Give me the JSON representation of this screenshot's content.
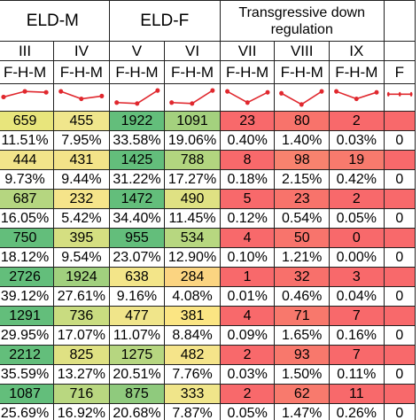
{
  "groups": [
    {
      "label": "ELD-M",
      "span": 2
    },
    {
      "label": "ELD-F",
      "span": 2
    },
    {
      "label": "Transgressive down regulation",
      "span": 3
    },
    {
      "label": "",
      "span": 1
    }
  ],
  "columns": [
    "III",
    "IV",
    "V",
    "VI",
    "VII",
    "VIII",
    "IX",
    ""
  ],
  "subheaders": [
    "F-H-M",
    "F-H-M",
    "F-H-M",
    "F-H-M",
    "F-H-M",
    "F-H-M",
    "F-H-M",
    "F"
  ],
  "trend_color": "#e0282e",
  "trends": [
    [
      0.45,
      0.15,
      0.2
    ],
    [
      0.15,
      0.55,
      0.4
    ],
    [
      0.75,
      0.8,
      0.1
    ],
    [
      0.75,
      0.8,
      0.1
    ],
    [
      0.15,
      0.75,
      0.2
    ],
    [
      0.25,
      0.85,
      0.15
    ],
    [
      0.15,
      0.55,
      0.2
    ],
    [
      0.3,
      0.3,
      0.3
    ]
  ],
  "rows": [
    {
      "type": "count",
      "cells": [
        {
          "text": "659",
          "color": "#e8e57c"
        },
        {
          "text": "455",
          "color": "#f0e68c"
        },
        {
          "text": "1922",
          "color": "#63be7b"
        },
        {
          "text": "1091",
          "color": "#a4d17e"
        },
        {
          "text": "23",
          "color": "#f8696b"
        },
        {
          "text": "80",
          "color": "#f8736b"
        },
        {
          "text": "2",
          "color": "#f8696b"
        },
        {
          "text": "",
          "color": "#f8696b"
        }
      ]
    },
    {
      "type": "pct",
      "cells": [
        {
          "text": "11.51%"
        },
        {
          "text": "7.95%"
        },
        {
          "text": "33.58%"
        },
        {
          "text": "19.06%"
        },
        {
          "text": "0.40%"
        },
        {
          "text": "1.40%"
        },
        {
          "text": "0.03%"
        },
        {
          "text": "0"
        }
      ]
    },
    {
      "type": "count",
      "cells": [
        {
          "text": "444",
          "color": "#f2e48a"
        },
        {
          "text": "431",
          "color": "#f3e389"
        },
        {
          "text": "1425",
          "color": "#63be7b"
        },
        {
          "text": "788",
          "color": "#b2d57f"
        },
        {
          "text": "8",
          "color": "#f8696b"
        },
        {
          "text": "98",
          "color": "#f8826e"
        },
        {
          "text": "19",
          "color": "#f87a6d"
        },
        {
          "text": "",
          "color": "#f8696b"
        }
      ]
    },
    {
      "type": "pct",
      "cells": [
        {
          "text": "9.73%"
        },
        {
          "text": "9.44%"
        },
        {
          "text": "31.22%"
        },
        {
          "text": "17.27%"
        },
        {
          "text": "0.18%"
        },
        {
          "text": "2.15%"
        },
        {
          "text": "0.42%"
        },
        {
          "text": "0"
        }
      ]
    },
    {
      "type": "count",
      "cells": [
        {
          "text": "687",
          "color": "#b5d680"
        },
        {
          "text": "232",
          "color": "#f5e48a"
        },
        {
          "text": "1472",
          "color": "#63be7b"
        },
        {
          "text": "490",
          "color": "#dfe183"
        },
        {
          "text": "5",
          "color": "#f8696b"
        },
        {
          "text": "23",
          "color": "#f8736b"
        },
        {
          "text": "2",
          "color": "#f8696b"
        },
        {
          "text": "",
          "color": "#f8696b"
        }
      ]
    },
    {
      "type": "pct",
      "cells": [
        {
          "text": "16.05%"
        },
        {
          "text": "5.42%"
        },
        {
          "text": "34.40%"
        },
        {
          "text": "11.45%"
        },
        {
          "text": "0.12%"
        },
        {
          "text": "0.54%"
        },
        {
          "text": "0.05%"
        },
        {
          "text": "0"
        }
      ]
    },
    {
      "type": "count",
      "cells": [
        {
          "text": "750",
          "color": "#63be7b"
        },
        {
          "text": "395",
          "color": "#d5df81"
        },
        {
          "text": "955",
          "color": "#63be7b"
        },
        {
          "text": "534",
          "color": "#b7d780"
        },
        {
          "text": "4",
          "color": "#f8696b"
        },
        {
          "text": "50",
          "color": "#f8746c"
        },
        {
          "text": "0",
          "color": "#f8696b"
        },
        {
          "text": "",
          "color": "#f8696b"
        }
      ]
    },
    {
      "type": "pct",
      "cells": [
        {
          "text": "18.12%"
        },
        {
          "text": "9.54%"
        },
        {
          "text": "23.07%"
        },
        {
          "text": "12.90%"
        },
        {
          "text": "0.10%"
        },
        {
          "text": "1.21%"
        },
        {
          "text": "0.00%"
        },
        {
          "text": "0"
        }
      ]
    },
    {
      "type": "count",
      "cells": [
        {
          "text": "2726",
          "color": "#63be7b"
        },
        {
          "text": "1924",
          "color": "#a1d07e"
        },
        {
          "text": "638",
          "color": "#f3e589"
        },
        {
          "text": "284",
          "color": "#fbd481"
        },
        {
          "text": "1",
          "color": "#f8696b"
        },
        {
          "text": "32",
          "color": "#f8706b"
        },
        {
          "text": "3",
          "color": "#f8696b"
        },
        {
          "text": "",
          "color": "#f8696b"
        }
      ]
    },
    {
      "type": "pct",
      "cells": [
        {
          "text": "39.12%"
        },
        {
          "text": "27.61%"
        },
        {
          "text": "9.16%"
        },
        {
          "text": "4.08%"
        },
        {
          "text": "0.01%"
        },
        {
          "text": "0.46%"
        },
        {
          "text": "0.04%"
        },
        {
          "text": "0"
        }
      ]
    },
    {
      "type": "count",
      "cells": [
        {
          "text": "1291",
          "color": "#63be7b"
        },
        {
          "text": "736",
          "color": "#c9dc80"
        },
        {
          "text": "477",
          "color": "#f0e58a"
        },
        {
          "text": "381",
          "color": "#fbe583"
        },
        {
          "text": "4",
          "color": "#f8696b"
        },
        {
          "text": "71",
          "color": "#f8786c"
        },
        {
          "text": "7",
          "color": "#f8696b"
        },
        {
          "text": "",
          "color": "#f8696b"
        }
      ]
    },
    {
      "type": "pct",
      "cells": [
        {
          "text": "29.95%"
        },
        {
          "text": "17.07%"
        },
        {
          "text": "11.07%"
        },
        {
          "text": "8.84%"
        },
        {
          "text": "0.09%"
        },
        {
          "text": "1.65%"
        },
        {
          "text": "0.16%"
        },
        {
          "text": "0"
        }
      ]
    },
    {
      "type": "count",
      "cells": [
        {
          "text": "2212",
          "color": "#63be7b"
        },
        {
          "text": "825",
          "color": "#dfe183"
        },
        {
          "text": "1275",
          "color": "#b6d680"
        },
        {
          "text": "482",
          "color": "#f5e48a"
        },
        {
          "text": "2",
          "color": "#f8696b"
        },
        {
          "text": "93",
          "color": "#f8786c"
        },
        {
          "text": "7",
          "color": "#f8696b"
        },
        {
          "text": "",
          "color": "#f8696b"
        }
      ]
    },
    {
      "type": "pct",
      "cells": [
        {
          "text": "35.59%"
        },
        {
          "text": "13.27%"
        },
        {
          "text": "20.51%"
        },
        {
          "text": "7.76%"
        },
        {
          "text": "0.03%"
        },
        {
          "text": "1.50%"
        },
        {
          "text": "0.11%"
        },
        {
          "text": "0"
        }
      ]
    },
    {
      "type": "count",
      "cells": [
        {
          "text": "1087",
          "color": "#63be7b"
        },
        {
          "text": "716",
          "color": "#b9d780"
        },
        {
          "text": "875",
          "color": "#8fca7d"
        },
        {
          "text": "333",
          "color": "#f0e58a"
        },
        {
          "text": "2",
          "color": "#f8696b"
        },
        {
          "text": "62",
          "color": "#f87a6d"
        },
        {
          "text": "11",
          "color": "#f8696b"
        },
        {
          "text": "",
          "color": "#f8696b"
        }
      ]
    },
    {
      "type": "pct",
      "cells": [
        {
          "text": "25.69%"
        },
        {
          "text": "16.92%"
        },
        {
          "text": "20.68%"
        },
        {
          "text": "7.87%"
        },
        {
          "text": "0.05%"
        },
        {
          "text": "1.47%"
        },
        {
          "text": "0.26%"
        },
        {
          "text": "0"
        }
      ]
    }
  ]
}
